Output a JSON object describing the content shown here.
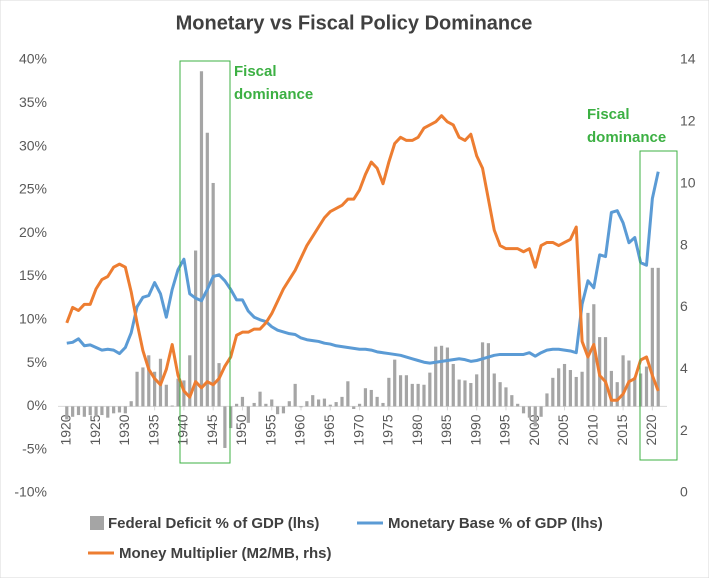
{
  "chart_data": {
    "type": "combo",
    "title": "Monetary vs Fiscal Policy Dominance",
    "x": [
      1920,
      1921,
      1922,
      1923,
      1924,
      1925,
      1926,
      1927,
      1928,
      1929,
      1930,
      1931,
      1932,
      1933,
      1934,
      1935,
      1936,
      1937,
      1938,
      1939,
      1940,
      1941,
      1942,
      1943,
      1944,
      1945,
      1946,
      1947,
      1948,
      1949,
      1950,
      1951,
      1952,
      1953,
      1954,
      1955,
      1956,
      1957,
      1958,
      1959,
      1960,
      1961,
      1962,
      1963,
      1964,
      1965,
      1966,
      1967,
      1968,
      1969,
      1970,
      1971,
      1972,
      1973,
      1974,
      1975,
      1976,
      1977,
      1978,
      1979,
      1980,
      1981,
      1982,
      1983,
      1984,
      1985,
      1986,
      1987,
      1988,
      1989,
      1990,
      1991,
      1992,
      1993,
      1994,
      1995,
      1996,
      1997,
      1998,
      1999,
      2000,
      2001,
      2002,
      2003,
      2004,
      2005,
      2006,
      2007,
      2008,
      2009,
      2010,
      2011,
      2012,
      2013,
      2014,
      2015,
      2016,
      2017,
      2018,
      2019,
      2020,
      2021
    ],
    "xlim": [
      1918.5,
      2022.5
    ],
    "xticks": [
      1920,
      1925,
      1930,
      1935,
      1940,
      1945,
      1950,
      1955,
      1960,
      1965,
      1970,
      1975,
      1980,
      1985,
      1990,
      1995,
      2000,
      2005,
      2010,
      2015,
      2020
    ],
    "ylim": [
      -10,
      40
    ],
    "yticks": [
      {
        "value": -10,
        "label": "-10%"
      },
      {
        "value": -5,
        "label": "-5%"
      },
      {
        "value": 0,
        "label": "0%"
      },
      {
        "value": 5,
        "label": "5%"
      },
      {
        "value": 10,
        "label": "10%"
      },
      {
        "value": 15,
        "label": "15%"
      },
      {
        "value": 20,
        "label": "20%"
      },
      {
        "value": 25,
        "label": "25%"
      },
      {
        "value": 30,
        "label": "30%"
      },
      {
        "value": 35,
        "label": "35%"
      },
      {
        "value": 40,
        "label": "40%"
      }
    ],
    "y2lim": [
      0,
      14
    ],
    "y2ticks": [
      0,
      2,
      4,
      6,
      8,
      10,
      12,
      14
    ],
    "series": [
      {
        "name": "Federal Deficit % of GDP (lhs)",
        "type": "bar",
        "color": "#a5a5a5",
        "values": [
          -1.5,
          -1.2,
          -1.0,
          -1.2,
          -1.0,
          -1.2,
          -1.0,
          -1.3,
          -0.8,
          -0.7,
          -0.8,
          0.6,
          4.0,
          4.5,
          5.9,
          4.0,
          5.5,
          2.5,
          0.1,
          3.2,
          3.0,
          5.9,
          18.0,
          38.7,
          31.6,
          25.8,
          5.0,
          -4.8,
          -2.5,
          0.3,
          1.1,
          -1.9,
          0.4,
          1.7,
          0.3,
          0.8,
          -0.9,
          -0.8,
          0.6,
          2.6,
          -0.1,
          0.6,
          1.3,
          0.8,
          0.9,
          0.2,
          0.5,
          1.1,
          2.9,
          -0.3,
          0.3,
          2.1,
          1.9,
          1.1,
          0.4,
          3.3,
          5.4,
          3.6,
          3.6,
          2.6,
          2.6,
          2.5,
          3.9,
          6.9,
          7.0,
          6.8,
          4.9,
          3.1,
          3.0,
          2.7,
          3.7,
          7.4,
          7.3,
          3.8,
          2.8,
          2.2,
          1.3,
          0.3,
          -0.8,
          -1.3,
          -2.3,
          -1.2,
          1.5,
          3.3,
          4.4,
          4.9,
          4.2,
          3.4,
          4.0,
          10.8,
          11.8,
          8.0,
          8.0,
          4.1,
          2.8,
          5.9,
          5.3,
          3.4,
          3.8,
          4.6,
          16.0,
          16.0
        ]
      },
      {
        "name": "Monetary Base % of GDP (lhs)",
        "type": "line",
        "color": "#5b9bd5",
        "values": [
          7.3,
          7.4,
          7.8,
          7.0,
          7.1,
          6.8,
          6.5,
          6.6,
          6.5,
          6.1,
          6.8,
          8.5,
          11.5,
          12.6,
          12.8,
          14.3,
          13.0,
          10.3,
          13.5,
          15.8,
          17.0,
          13.0,
          12.5,
          12.2,
          13.5,
          15.0,
          15.2,
          14.5,
          13.5,
          12.3,
          12.3,
          11.0,
          10.3,
          10.0,
          9.8,
          9.2,
          8.8,
          8.6,
          8.4,
          8.3,
          7.9,
          7.7,
          7.6,
          7.5,
          7.3,
          7.2,
          7.0,
          6.9,
          6.8,
          6.7,
          6.6,
          6.6,
          6.5,
          6.3,
          6.2,
          6.1,
          6.0,
          5.9,
          5.7,
          5.5,
          5.3,
          5.1,
          5.0,
          5.1,
          5.2,
          5.3,
          5.4,
          5.5,
          5.4,
          5.2,
          5.3,
          5.5,
          5.7,
          5.9,
          6.0,
          6.0,
          6.0,
          6.0,
          6.0,
          6.2,
          5.8,
          6.2,
          6.5,
          6.6,
          6.6,
          6.5,
          6.4,
          6.2,
          11.8,
          14.5,
          13.7,
          17.5,
          17.3,
          22.4,
          22.6,
          21.2,
          18.9,
          19.5,
          16.6,
          16.3,
          24.0,
          27.1
        ]
      },
      {
        "name": "Money Multiplier (M2/MB, rhs)",
        "type": "line",
        "axis": "y2",
        "color": "#ed7d31",
        "values": [
          5.5,
          6.0,
          5.9,
          6.1,
          6.1,
          6.6,
          6.9,
          7.0,
          7.3,
          7.4,
          7.3,
          6.5,
          5.5,
          4.6,
          4.0,
          3.7,
          3.5,
          4.0,
          4.8,
          3.8,
          3.3,
          3.1,
          3.6,
          3.4,
          3.6,
          3.5,
          3.7,
          4.1,
          4.4,
          5.1,
          5.2,
          5.2,
          5.3,
          5.3,
          5.5,
          5.8,
          6.2,
          6.6,
          6.9,
          7.2,
          7.6,
          8.0,
          8.3,
          8.6,
          8.9,
          9.1,
          9.2,
          9.3,
          9.5,
          9.5,
          9.8,
          10.3,
          10.7,
          10.5,
          10.0,
          10.7,
          11.3,
          11.5,
          11.4,
          11.4,
          11.5,
          11.8,
          11.9,
          12.0,
          12.2,
          12.0,
          11.9,
          11.5,
          11.4,
          11.6,
          10.9,
          10.5,
          9.5,
          8.5,
          8.0,
          7.9,
          7.9,
          7.9,
          7.8,
          7.9,
          7.3,
          8.0,
          8.1,
          8.1,
          8.0,
          8.1,
          8.2,
          8.6,
          4.9,
          4.4,
          4.8,
          3.8,
          3.6,
          3.0,
          3.0,
          3.2,
          3.6,
          3.7,
          4.3,
          4.4,
          3.8,
          3.3
        ]
      }
    ],
    "annotations": [
      [
        "Fiscal",
        "dominance"
      ],
      [
        "Fiscal",
        "dominance"
      ]
    ],
    "legend": "bottom"
  }
}
